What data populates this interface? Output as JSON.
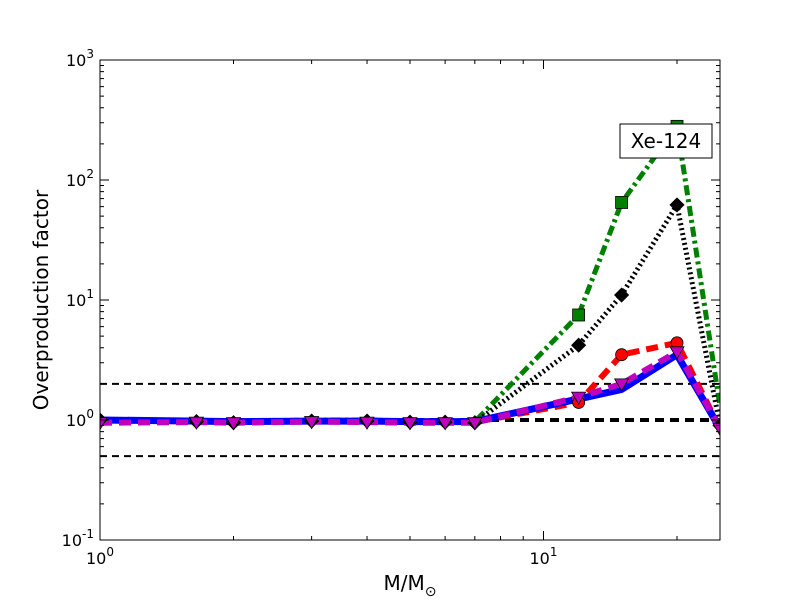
{
  "chart_data": {
    "type": "line",
    "title": "",
    "xlabel": "M/M",
    "xlabel_sub": "⊙",
    "ylabel": "Overproduction factor",
    "annotation": "Xe-124",
    "xscale": "log",
    "yscale": "log",
    "xlim": [
      1,
      25
    ],
    "ylim": [
      0.1,
      1000
    ],
    "grid": false,
    "legend": "none",
    "x_ticks": [
      {
        "value": 1,
        "base": "10",
        "exp": "0"
      },
      {
        "value": 10,
        "base": "10",
        "exp": "1"
      }
    ],
    "y_ticks": [
      {
        "value": 0.1,
        "base": "10",
        "exp": "-1"
      },
      {
        "value": 1,
        "base": "10",
        "exp": "0"
      },
      {
        "value": 10,
        "base": "10",
        "exp": "1"
      },
      {
        "value": 100,
        "base": "10",
        "exp": "2"
      },
      {
        "value": 1000,
        "base": "10",
        "exp": "3"
      }
    ],
    "reference_lines": [
      {
        "y": 2.0,
        "style": "dashed-thin"
      },
      {
        "y": 1.0,
        "style": "dashed-thick"
      },
      {
        "y": 0.5,
        "style": "dashed-thin"
      }
    ],
    "series": [
      {
        "color": "#008000",
        "style": "dashdot",
        "marker": "square",
        "x": [
          1,
          1.65,
          2,
          3,
          4,
          5,
          6,
          7,
          12,
          15,
          20,
          25
        ],
        "y": [
          1.0,
          1.0,
          0.97,
          1.0,
          1.0,
          0.98,
          0.98,
          0.97,
          7.5,
          65,
          280,
          1.3
        ],
        "markers_x": [
          12,
          15,
          20
        ],
        "markers_y": [
          7.5,
          65,
          280
        ]
      },
      {
        "color": "#000000",
        "style": "dotted",
        "marker": "diamond",
        "x": [
          1,
          1.65,
          2,
          3,
          4,
          5,
          6,
          7,
          12,
          15,
          20,
          25
        ],
        "y": [
          1.0,
          0.97,
          0.95,
          0.98,
          0.98,
          0.96,
          0.96,
          0.95,
          4.2,
          11,
          62,
          0.9
        ],
        "markers_x": [
          1,
          1.65,
          2,
          3,
          4,
          5,
          6,
          7,
          12,
          15,
          20,
          25
        ],
        "markers_y": [
          1.0,
          0.97,
          0.95,
          0.98,
          0.98,
          0.96,
          0.96,
          0.95,
          4.2,
          11,
          62,
          0.9
        ]
      },
      {
        "color": "#ff0000",
        "style": "dashed",
        "marker": "circle",
        "x": [
          1,
          1.65,
          2,
          3,
          4,
          5,
          6,
          7,
          12,
          15,
          20,
          25
        ],
        "y": [
          1.0,
          0.98,
          0.95,
          0.98,
          0.98,
          0.97,
          0.96,
          0.96,
          1.4,
          3.5,
          4.4,
          0.85
        ],
        "markers_x": [
          12,
          15,
          20
        ],
        "markers_y": [
          1.4,
          3.5,
          4.4
        ]
      },
      {
        "color": "#0000ff",
        "style": "solid",
        "marker": "none",
        "x": [
          1,
          1.65,
          2,
          3,
          4,
          5,
          6,
          7,
          12,
          15,
          20,
          25
        ],
        "y": [
          1.0,
          0.98,
          0.97,
          0.98,
          0.98,
          0.97,
          0.97,
          0.97,
          1.5,
          1.8,
          3.5,
          0.85
        ],
        "markers_x": [],
        "markers_y": []
      },
      {
        "color": "#bf00bf",
        "style": "dashed",
        "marker": "triangle-down",
        "x": [
          1,
          1.65,
          2,
          3,
          4,
          5,
          6,
          7,
          12,
          15,
          20,
          25
        ],
        "y": [
          0.95,
          0.96,
          0.95,
          0.97,
          0.96,
          0.95,
          0.95,
          0.95,
          1.55,
          2.0,
          3.7,
          0.85
        ],
        "markers_x": [
          1,
          1.65,
          2,
          3,
          4,
          5,
          6,
          7,
          12,
          15,
          20,
          25
        ],
        "markers_y": [
          0.95,
          0.96,
          0.95,
          0.97,
          0.96,
          0.95,
          0.95,
          0.95,
          1.55,
          2.0,
          3.7,
          0.85
        ]
      }
    ]
  }
}
